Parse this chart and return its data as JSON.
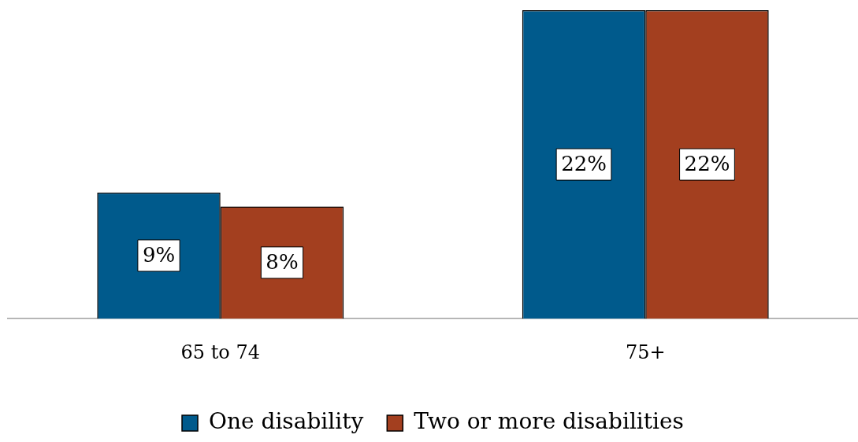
{
  "chart_data": {
    "type": "bar",
    "categories": [
      "65 to 74",
      "75+"
    ],
    "series": [
      {
        "name": "One disability",
        "color": "#005a8c",
        "values": [
          9,
          22
        ],
        "value_labels": [
          "9%",
          "22%"
        ]
      },
      {
        "name": "Two or more disabilities",
        "color": "#a33f1f",
        "values": [
          8,
          22
        ],
        "value_labels": [
          "8%",
          "22%"
        ]
      }
    ],
    "tick_labels": "x",
    "grid": false,
    "legend": "bottom"
  }
}
